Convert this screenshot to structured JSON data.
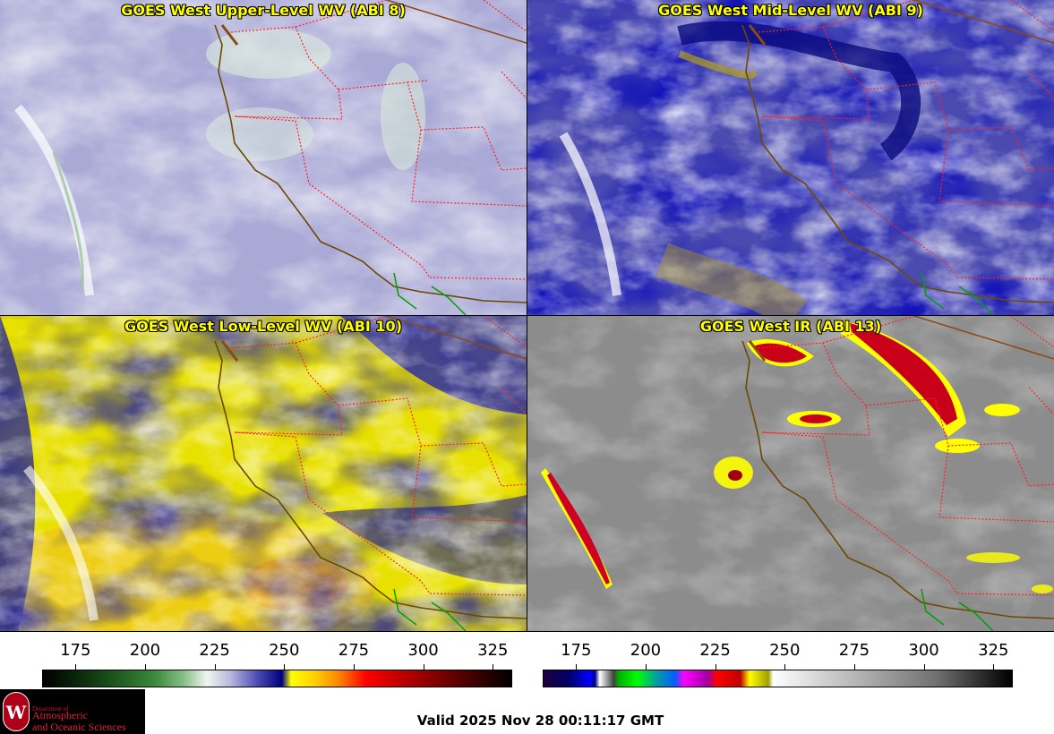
{
  "panels": [
    {
      "title": "GOES West Upper-Level WV (ABI 8)"
    },
    {
      "title": "GOES West Mid-Level WV (ABI 9)"
    },
    {
      "title": "GOES West Low-Level WV (ABI 10)"
    },
    {
      "title": "GOES West IR (ABI 13)"
    }
  ],
  "colorbars": [
    {
      "ticks": [
        "175",
        "200",
        "225",
        "250",
        "275",
        "300",
        "325"
      ],
      "values": [
        175,
        200,
        225,
        250,
        275,
        300,
        325
      ],
      "range": [
        163,
        332
      ]
    },
    {
      "ticks": [
        "175",
        "200",
        "225",
        "250",
        "275",
        "300",
        "325"
      ],
      "values": [
        175,
        200,
        225,
        250,
        275,
        300,
        325
      ],
      "range": [
        163,
        332
      ]
    }
  ],
  "logo": {
    "seal_letter": "W",
    "department_of": "Department of",
    "line1": "Atmospheric",
    "line2": "and Oceanic Sciences"
  },
  "valid_time": "Valid 2025 Nov 28 00:11:17 GMT",
  "colors": {
    "title_text": "#ffff00",
    "state_borders": "#ff2020",
    "coastline": "#6b4a00",
    "mexico_border": "#00a000"
  }
}
